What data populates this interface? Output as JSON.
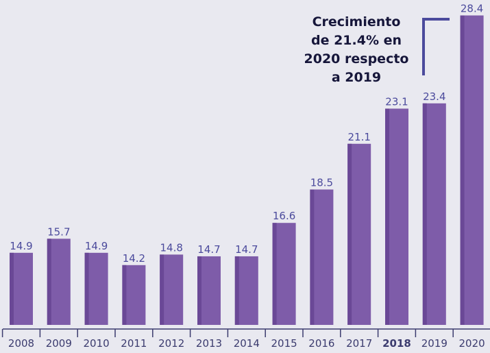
{
  "chart_data": {
    "type": "bar",
    "categories": [
      "2008",
      "2009",
      "2010",
      "2011",
      "2012",
      "2013",
      "2014",
      "2015",
      "2016",
      "2017",
      "2018",
      "2019",
      "2020"
    ],
    "values": [
      14.9,
      15.7,
      14.9,
      14.2,
      14.8,
      14.7,
      14.7,
      16.6,
      18.5,
      21.1,
      23.1,
      23.4,
      28.4
    ],
    "color": "#7e5ca9",
    "ylim": [
      10.8,
      29.2
    ],
    "highlight_index": 10,
    "annotation": [
      "Crecimiento",
      "de 21.4% en",
      "2020 respecto",
      "a 2019"
    ]
  }
}
